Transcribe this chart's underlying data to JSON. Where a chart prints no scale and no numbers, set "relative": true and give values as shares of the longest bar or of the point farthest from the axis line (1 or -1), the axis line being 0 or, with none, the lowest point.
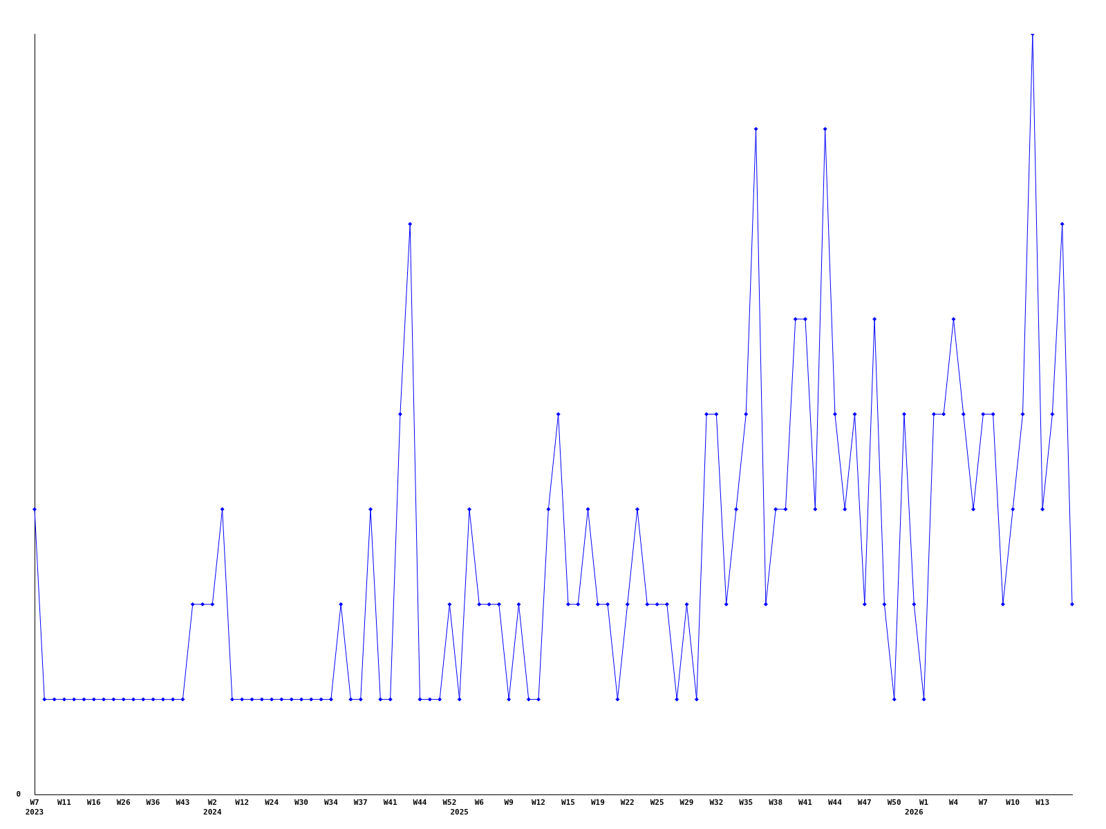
{
  "chart_data": {
    "type": "line",
    "relative": true,
    "grid": false,
    "legend": false,
    "marker": "diamond",
    "line_style": "solid",
    "annotations": [
      "0"
    ],
    "categories": [
      "W7\n2023",
      null,
      null,
      "W11",
      null,
      null,
      "W16",
      null,
      null,
      "W26",
      null,
      null,
      "W36",
      null,
      null,
      "W43",
      null,
      null,
      "W2\n2024",
      null,
      null,
      "W12",
      null,
      null,
      "W24",
      null,
      null,
      "W30",
      null,
      null,
      "W34",
      null,
      null,
      "W37",
      null,
      null,
      "W41",
      null,
      null,
      "W44",
      null,
      null,
      "W52",
      "\n2025",
      null,
      "W6",
      null,
      null,
      "W9",
      null,
      null,
      "W12",
      null,
      null,
      "W15",
      null,
      null,
      "W19",
      null,
      null,
      "W22",
      null,
      null,
      "W25",
      null,
      null,
      "W29",
      null,
      null,
      "W32",
      null,
      null,
      "W35",
      null,
      null,
      "W38",
      null,
      null,
      "W41",
      null,
      null,
      "W44",
      null,
      null,
      "W47",
      null,
      null,
      "W50",
      null,
      "\n2026",
      "W1",
      null,
      null,
      "W4",
      null,
      null,
      "W7",
      null,
      null,
      "W10",
      null,
      null,
      "W13",
      null,
      null,
      null
    ],
    "series": [
      {
        "color": "#0000ff",
        "values": [
          0.375,
          0.125,
          0.125,
          0.125,
          0.125,
          0.125,
          0.125,
          0.125,
          0.125,
          0.125,
          0.125,
          0.125,
          0.125,
          0.125,
          0.125,
          0.125,
          0.25,
          0.25,
          0.25,
          0.375,
          0.125,
          0.125,
          0.125,
          0.125,
          0.125,
          0.125,
          0.125,
          0.125,
          0.125,
          0.125,
          0.125,
          0.25,
          0.125,
          0.125,
          0.375,
          0.125,
          0.125,
          0.5,
          0.75,
          0.125,
          0.125,
          0.125,
          0.25,
          0.125,
          0.375,
          0.25,
          0.25,
          0.25,
          0.125,
          0.25,
          0.125,
          0.125,
          0.375,
          0.5,
          0.25,
          0.25,
          0.375,
          0.25,
          0.25,
          0.125,
          0.25,
          0.375,
          0.25,
          0.25,
          0.25,
          0.125,
          0.25,
          0.125,
          0.5,
          0.5,
          0.25,
          0.375,
          0.5,
          0.875,
          0.25,
          0.375,
          0.375,
          0.625,
          0.625,
          0.375,
          0.875,
          0.5,
          0.375,
          0.5,
          0.25,
          0.625,
          0.25,
          0.125,
          0.5,
          0.25,
          0.125,
          0.5,
          0.5,
          0.625,
          0.5,
          0.375,
          0.5,
          0.5,
          0.25,
          0.375,
          0.5,
          1,
          0.375,
          0.5,
          0.75,
          0.25
        ]
      }
    ]
  }
}
